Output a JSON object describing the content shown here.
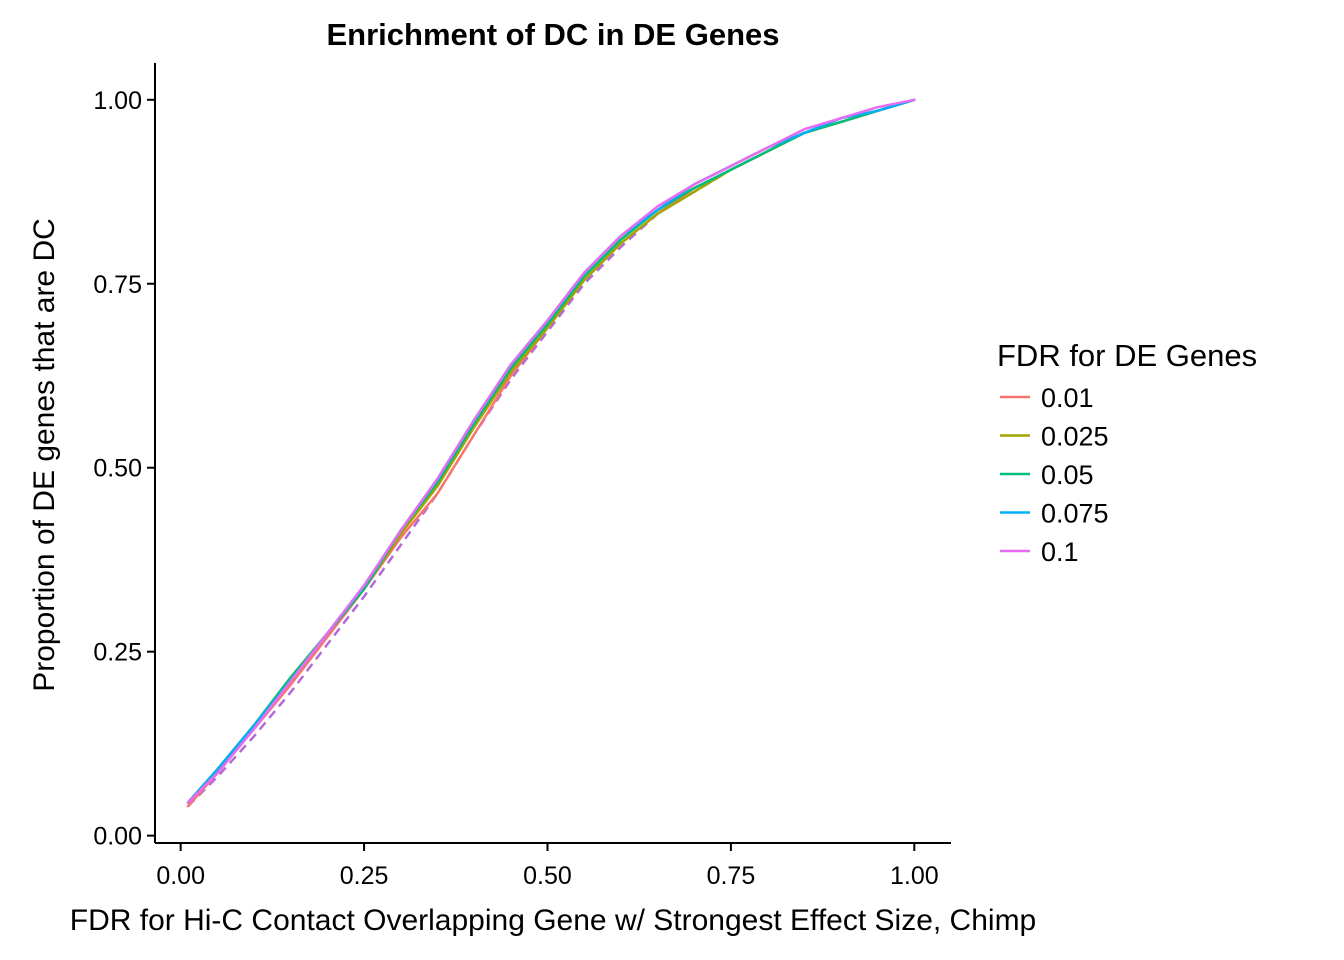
{
  "chart_data": {
    "type": "line",
    "title": "Enrichment of DC in DE Genes",
    "xlabel": "FDR for Hi-C Contact Overlapping Gene w/ Strongest Effect Size, Chimp",
    "ylabel": "Proportion of DE genes that are DC",
    "xlim": [
      -0.035,
      1.05
    ],
    "ylim": [
      -0.01,
      1.05
    ],
    "xticks": [
      0,
      0.25,
      0.5,
      0.75,
      1
    ],
    "xtick_labels": [
      "0.00",
      "0.25",
      "0.50",
      "0.75",
      "1.00"
    ],
    "yticks": [
      0,
      0.25,
      0.5,
      0.75,
      1
    ],
    "ytick_labels": [
      "0.00",
      "0.25",
      "0.50",
      "0.75",
      "1.00"
    ],
    "grid": false,
    "legend": {
      "title": "FDR for DE Genes",
      "placement": "right"
    },
    "x": [
      0.01,
      0.05,
      0.1,
      0.15,
      0.2,
      0.25,
      0.3,
      0.35,
      0.4,
      0.45,
      0.5,
      0.55,
      0.6,
      0.65,
      0.7,
      0.75,
      0.8,
      0.85,
      0.9,
      0.95,
      1.0
    ],
    "series": [
      {
        "name": "0.01",
        "color": "#F8766D",
        "values": [
          0.04,
          0.085,
          0.145,
          0.205,
          0.27,
          0.335,
          0.405,
          0.465,
          0.545,
          0.625,
          0.69,
          0.755,
          0.805,
          0.845,
          0.88,
          0.905,
          0.93,
          0.955,
          0.97,
          0.985,
          1.0
        ]
      },
      {
        "name": "0.025",
        "color": "#A3A500",
        "values": [
          0.045,
          0.09,
          0.15,
          0.215,
          0.275,
          0.335,
          0.41,
          0.475,
          0.555,
          0.63,
          0.69,
          0.755,
          0.805,
          0.845,
          0.875,
          0.905,
          0.93,
          0.955,
          0.97,
          0.985,
          1.0
        ]
      },
      {
        "name": "0.05",
        "color": "#00BF7D",
        "values": [
          0.045,
          0.09,
          0.15,
          0.215,
          0.275,
          0.335,
          0.415,
          0.48,
          0.56,
          0.635,
          0.695,
          0.76,
          0.81,
          0.85,
          0.88,
          0.905,
          0.93,
          0.955,
          0.97,
          0.985,
          1.0
        ]
      },
      {
        "name": "0.075",
        "color": "#00B0F6",
        "values": [
          0.045,
          0.09,
          0.15,
          0.21,
          0.275,
          0.34,
          0.415,
          0.485,
          0.565,
          0.64,
          0.7,
          0.765,
          0.815,
          0.85,
          0.885,
          0.91,
          0.935,
          0.955,
          0.975,
          0.985,
          1.0
        ]
      },
      {
        "name": "0.1",
        "color": "#E76BF3",
        "values": [
          0.045,
          0.085,
          0.145,
          0.21,
          0.275,
          0.34,
          0.415,
          0.485,
          0.565,
          0.64,
          0.7,
          0.765,
          0.815,
          0.855,
          0.885,
          0.91,
          0.935,
          0.96,
          0.975,
          0.99,
          1.0
        ]
      }
    ],
    "reference_line": {
      "style": "dashed",
      "color": "#B46BD8",
      "values": [
        0.04,
        0.08,
        0.135,
        0.195,
        0.26,
        0.325,
        0.395,
        0.465,
        0.545,
        0.62,
        0.685,
        0.75,
        0.8,
        0.845,
        0.875,
        0.905,
        0.93,
        0.955,
        0.97,
        0.985,
        1.0
      ]
    }
  }
}
